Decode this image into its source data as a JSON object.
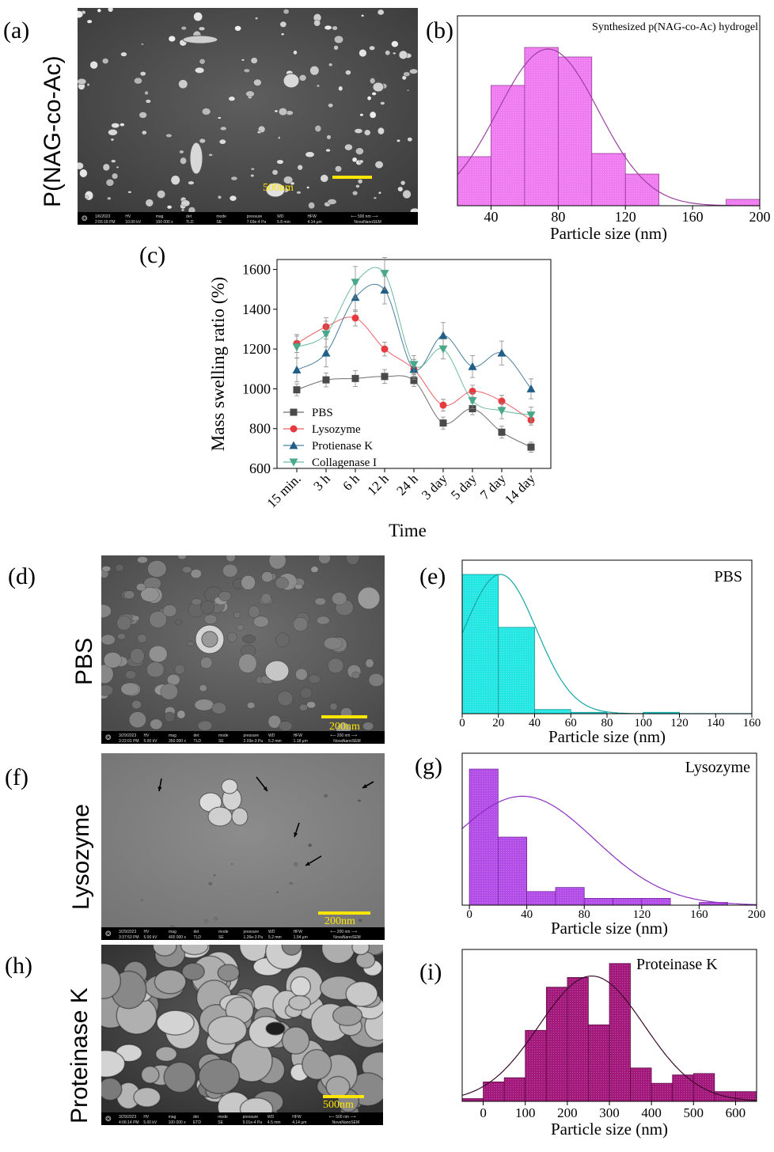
{
  "panels": {
    "a": {
      "letter": "(a)",
      "row_label": "P(NAG-co-Ac)",
      "scale_text": "500nm",
      "info": [
        "1/6/2023",
        "2:55:18 PM",
        "HV",
        "10.00 kV",
        "mag",
        "100 000 x",
        "det",
        "TLD",
        "mode",
        "SE",
        "pressure",
        "7.69e-4 Pa",
        "WD",
        "5.8 mm",
        "HFW",
        "4.14 µm",
        "500 nm",
        "NovaNanoSEM"
      ]
    },
    "d": {
      "letter": "(d)",
      "row_label": "PBS",
      "scale_text": "200nm",
      "info": [
        "3/29/2023",
        "3:22:01 PM",
        "HV",
        "5.00 kV",
        "mag",
        "350 000 x",
        "det",
        "TLD",
        "mode",
        "SE",
        "pressure",
        "2.03e-3 Pa",
        "WD",
        "5.2 mm",
        "HFW",
        "1.18 µm",
        "200 nm",
        "NovaNanoSEM"
      ]
    },
    "f": {
      "letter": "(f)",
      "row_label": "Lysozyme",
      "scale_text": "200nm",
      "info": [
        "3/29/2023",
        "3:37:53 PM",
        "HV",
        "5.00 kV",
        "mag",
        "400 000 x",
        "det",
        "TLD",
        "mode",
        "SE",
        "pressure",
        "1.26e-3 Pa",
        "WD",
        "5.2 mm",
        "HFW",
        "1.04 µm",
        "200 nm",
        "NovaNanoSEM"
      ]
    },
    "h": {
      "letter": "(h)",
      "row_label": "Proteinase K",
      "scale_text": "500nm",
      "info": [
        "3/29/2023",
        "4:06:14 PM",
        "HV",
        "5.00 kV",
        "mag",
        "100 000 x",
        "det",
        "ETD",
        "mode",
        "SE",
        "pressure",
        "9.01e-4 Pa",
        "WD",
        "4.5 mm",
        "HFW",
        "4.14 µm",
        "500 nm",
        "NovaNanoSEM"
      ]
    },
    "b_letter": "(b)",
    "c_letter": "(c)",
    "e_letter": "(e)",
    "g_letter": "(g)",
    "i_letter": "(i)"
  },
  "chart_data": [
    {
      "id": "b",
      "type": "bar",
      "annotation": "Synthesized p(NAG-co-Ac) hydrogel",
      "xlabel": "Particle size (nm)",
      "ylabel": "",
      "xlim": [
        20,
        200
      ],
      "xticks": [
        40,
        80,
        120,
        160,
        200
      ],
      "bin_edges": [
        20,
        40,
        60,
        80,
        100,
        120,
        140,
        160,
        180,
        200
      ],
      "values": [
        0.31,
        0.76,
        1.0,
        0.94,
        0.33,
        0.2,
        0,
        0,
        0.04
      ],
      "fit": {
        "mean": 74,
        "sd": 30,
        "peak": 0.99
      },
      "bar_color": "#f07cf2",
      "edge_color": "#8a2a8c",
      "fit_color": "#9b3f9f"
    },
    {
      "id": "c",
      "type": "line",
      "xlabel": "Time",
      "ylabel": "Mass swelling ratio (%)",
      "ylim": [
        600,
        1650
      ],
      "yticks": [
        600,
        800,
        1000,
        1200,
        1400,
        1600
      ],
      "categories": [
        "15 min.",
        "3 h",
        "6 h",
        "12 h",
        "24 h",
        "3 day",
        "5 day",
        "7 day",
        "14 day"
      ],
      "legend_position": "bottom-left",
      "series": [
        {
          "name": "PBS",
          "color": "#4a4a4a",
          "marker": "square",
          "values": [
            995,
            1045,
            1052,
            1062,
            1042,
            828,
            900,
            782,
            707
          ],
          "errors": [
            30,
            35,
            40,
            35,
            30,
            30,
            30,
            30,
            25
          ]
        },
        {
          "name": "Lysozyme",
          "color": "#e8393f",
          "marker": "circle",
          "values": [
            1228,
            1312,
            1356,
            1200,
            1098,
            918,
            988,
            938,
            843
          ],
          "errors": [
            45,
            45,
            40,
            35,
            35,
            30,
            30,
            30,
            25
          ]
        },
        {
          "name": "Protienase K",
          "color": "#1f5f87",
          "marker": "triangle",
          "values": [
            1095,
            1180,
            1460,
            1497,
            1098,
            1268,
            1112,
            1180,
            1000
          ],
          "errors": [
            60,
            70,
            70,
            70,
            50,
            65,
            55,
            60,
            50
          ]
        },
        {
          "name": "Collagenase I",
          "color": "#4aa88a",
          "marker": "triangle-down",
          "values": [
            1210,
            1275,
            1535,
            1580,
            1122,
            1200,
            940,
            890,
            868
          ],
          "errors": [
            55,
            65,
            80,
            80,
            45,
            50,
            40,
            40,
            40
          ]
        }
      ]
    },
    {
      "id": "e",
      "type": "bar",
      "annotation": "PBS",
      "xlabel": "Particle size (nm)",
      "ylabel": "",
      "xlim": [
        0,
        160
      ],
      "xticks": [
        0,
        20,
        40,
        60,
        80,
        100,
        120,
        140,
        160
      ],
      "bin_edges": [
        0,
        20,
        40,
        60,
        80,
        100,
        120
      ],
      "values": [
        1.0,
        0.62,
        0.03,
        0.01,
        0,
        0.01
      ],
      "fit": {
        "mean": 21,
        "sd": 20,
        "peak": 1.0
      },
      "bar_color": "#24e6e2",
      "edge_color": "#0d8e8c",
      "fit_color": "#16a7a5"
    },
    {
      "id": "g",
      "type": "bar",
      "annotation": "Lysozyme",
      "xlabel": "Particle size (nm)",
      "ylabel": "",
      "xlim": [
        -5,
        200
      ],
      "xticks": [
        0,
        40,
        80,
        120,
        160,
        200
      ],
      "bin_edges": [
        0,
        20,
        40,
        60,
        80,
        100,
        120,
        140,
        160,
        180
      ],
      "values": [
        1.0,
        0.5,
        0.1,
        0.13,
        0.05,
        0.05,
        0.05,
        0.0,
        0.02
      ],
      "fit": {
        "mean": 37,
        "sd": 50,
        "peak": 0.8
      },
      "bar_color": "#b34de8",
      "edge_color": "#6a1d96",
      "fit_color": "#8a2ec0"
    },
    {
      "id": "i",
      "type": "bar",
      "annotation": "Proteinase K",
      "xlabel": "Particle size (nm)",
      "ylabel": "",
      "xlim": [
        -50,
        650
      ],
      "xticks": [
        0,
        100,
        200,
        300,
        400,
        500,
        600
      ],
      "bin_edges": [
        -50,
        0,
        50,
        100,
        150,
        200,
        250,
        300,
        350,
        400,
        450,
        500,
        550,
        600,
        650
      ],
      "values": [
        0.02,
        0.14,
        0.17,
        0.51,
        0.82,
        0.89,
        0.55,
        0.99,
        0.24,
        0.13,
        0.19,
        0.2,
        0.07,
        0.07
      ],
      "fit": {
        "mean": 258,
        "sd": 125,
        "peak": 0.9
      },
      "bar_color": "#a3197b",
      "edge_color": "#4f0b3b",
      "fit_color": "#3a0a2c"
    }
  ]
}
